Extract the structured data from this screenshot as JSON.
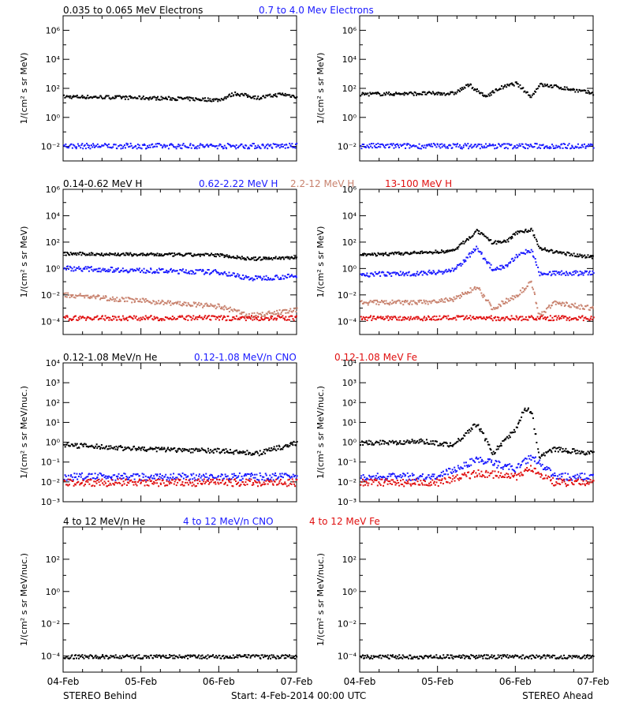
{
  "colors": {
    "black": "#000000",
    "blue": "#1a1aff",
    "tan": "#c8826e",
    "red": "#e01010"
  },
  "x_axis": {
    "tick_labels": [
      "04-Feb",
      "05-Feb",
      "06-Feb",
      "07-Feb"
    ]
  },
  "footer": {
    "left": "STEREO Behind",
    "center": "Start:  4-Feb-2014 00:00 UTC",
    "right": "STEREO Ahead"
  },
  "rows": [
    {
      "legend": [
        {
          "text": "0.035 to 0.065 MeV Electrons",
          "color": "black"
        },
        {
          "text": "0.7 to 4.0 Mev Electrons",
          "color": "blue"
        }
      ],
      "ylabel": "1/(cm² s sr MeV)",
      "ylim_exp": [
        -3,
        7
      ],
      "yticks": [
        {
          "exp": 6,
          "label": "10⁶"
        },
        {
          "exp": 4,
          "label": "10⁴"
        },
        {
          "exp": 2,
          "label": "10²"
        },
        {
          "exp": 0,
          "label": "10⁰"
        },
        {
          "exp": -2,
          "label": "10⁻²"
        }
      ]
    },
    {
      "legend": [
        {
          "text": "0.14-0.62 MeV H",
          "color": "black"
        },
        {
          "text": "0.62-2.22 MeV H",
          "color": "blue"
        },
        {
          "text": "2.2-12 MeV H",
          "color": "tan"
        },
        {
          "text": "13-100 MeV H",
          "color": "red"
        }
      ],
      "ylabel": "1/(cm² s sr MeV)",
      "ylim_exp": [
        -5,
        6
      ],
      "yticks": [
        {
          "exp": 6,
          "label": "10⁶"
        },
        {
          "exp": 4,
          "label": "10⁴"
        },
        {
          "exp": 2,
          "label": "10²"
        },
        {
          "exp": 0,
          "label": "10⁰"
        },
        {
          "exp": -2,
          "label": "10⁻²"
        },
        {
          "exp": -4,
          "label": "10⁻⁴"
        }
      ]
    },
    {
      "legend": [
        {
          "text": "0.12-1.08 MeV/n He",
          "color": "black"
        },
        {
          "text": "0.12-1.08 MeV/n CNO",
          "color": "blue"
        },
        {
          "text": "0.12-1.08 MeV Fe",
          "color": "red"
        }
      ],
      "ylabel": "1/(cm² s sr MeV/nuc.)",
      "ylim_exp": [
        -3,
        4
      ],
      "yticks": [
        {
          "exp": 4,
          "label": "10⁴"
        },
        {
          "exp": 3,
          "label": "10³"
        },
        {
          "exp": 2,
          "label": "10²"
        },
        {
          "exp": 1,
          "label": "10¹"
        },
        {
          "exp": 0,
          "label": "10⁰"
        },
        {
          "exp": -1,
          "label": "10⁻¹"
        },
        {
          "exp": -2,
          "label": "10⁻²"
        },
        {
          "exp": -3,
          "label": "10⁻³"
        }
      ]
    },
    {
      "legend": [
        {
          "text": "4 to 12 MeV/n He",
          "color": "black"
        },
        {
          "text": "4 to 12 MeV/n CNO",
          "color": "blue"
        },
        {
          "text": "4 to 12 MeV Fe",
          "color": "red"
        }
      ],
      "ylabel": "1/(cm² s sr MeV/nuc.)",
      "ylim_exp": [
        -5,
        4
      ],
      "yticks": [
        {
          "exp": 2,
          "label": "10²"
        },
        {
          "exp": 0,
          "label": "10⁰"
        },
        {
          "exp": -2,
          "label": "10⁻²"
        },
        {
          "exp": -4,
          "label": "10⁻⁴"
        }
      ]
    }
  ],
  "chart_data": [
    {
      "type": "scatter",
      "panel": "Behind row 1",
      "x_unit": "days since 04-Feb-2014",
      "y_scale": "log",
      "series": [
        {
          "name": "0.035 to 0.065 MeV Electrons",
          "color": "black",
          "x": [
            0,
            0.5,
            1,
            1.5,
            2,
            2.2,
            2.5,
            2.8,
            3
          ],
          "y": [
            30,
            28,
            25,
            22,
            18,
            50,
            25,
            45,
            30
          ]
        },
        {
          "name": "0.7 to 4.0 Mev Electrons",
          "color": "blue",
          "x": [
            0,
            1,
            2,
            3
          ],
          "y": [
            0.012,
            0.012,
            0.012,
            0.012
          ]
        }
      ]
    },
    {
      "type": "scatter",
      "panel": "Ahead row 1",
      "x_unit": "days since 04-Feb-2014",
      "y_scale": "log",
      "series": [
        {
          "name": "0.035 to 0.065 MeV Electrons",
          "color": "black",
          "x": [
            0,
            0.8,
            1.2,
            1.4,
            1.6,
            1.8,
            2.0,
            2.2,
            2.3,
            2.5,
            3
          ],
          "y": [
            45,
            50,
            50,
            200,
            30,
            120,
            250,
            30,
            200,
            150,
            50
          ]
        },
        {
          "name": "0.7 to 4.0 Mev Electrons",
          "color": "blue",
          "x": [
            0,
            1,
            2,
            3
          ],
          "y": [
            0.012,
            0.012,
            0.012,
            0.012
          ]
        }
      ]
    },
    {
      "type": "scatter",
      "panel": "Behind row 2",
      "x_unit": "days since 04-Feb-2014",
      "y_scale": "log",
      "series": [
        {
          "name": "0.14-0.62 MeV H",
          "color": "black",
          "x": [
            0,
            1,
            2,
            2.4,
            3
          ],
          "y": [
            15,
            13,
            12,
            6,
            8
          ]
        },
        {
          "name": "0.62-2.22 MeV H",
          "color": "blue",
          "x": [
            0,
            1,
            2,
            2.4,
            3
          ],
          "y": [
            1.2,
            0.8,
            0.6,
            0.2,
            0.3
          ]
        },
        {
          "name": "2.2-12 MeV H",
          "color": "tan",
          "x": [
            0,
            1,
            2,
            2.4,
            3
          ],
          "y": [
            0.012,
            0.004,
            0.0015,
            0.0003,
            0.0008
          ]
        },
        {
          "name": "13-100 MeV H",
          "color": "red",
          "x": [
            0,
            1,
            2,
            3
          ],
          "y": [
            0.0002,
            0.0002,
            0.0002,
            0.0002
          ]
        }
      ]
    },
    {
      "type": "scatter",
      "panel": "Ahead row 2",
      "x_unit": "days since 04-Feb-2014",
      "y_scale": "log",
      "series": [
        {
          "name": "0.14-0.62 MeV H",
          "color": "black",
          "x": [
            0,
            0.8,
            1.2,
            1.5,
            1.7,
            1.9,
            2.0,
            2.2,
            2.3,
            2.5,
            3
          ],
          "y": [
            12,
            18,
            25,
            800,
            100,
            150,
            600,
            1000,
            40,
            20,
            8
          ]
        },
        {
          "name": "0.62-2.22 MeV H",
          "color": "blue",
          "x": [
            0,
            0.8,
            1.2,
            1.5,
            1.7,
            1.9,
            2.0,
            2.2,
            2.3,
            2.5,
            3
          ],
          "y": [
            0.4,
            0.5,
            0.8,
            40,
            1,
            2,
            10,
            30,
            0.5,
            0.5,
            0.5
          ]
        },
        {
          "name": "2.2-12 MeV H",
          "color": "tan",
          "x": [
            0,
            0.8,
            1.2,
            1.5,
            1.7,
            1.9,
            2.0,
            2.2,
            2.3,
            2.5,
            3
          ],
          "y": [
            0.003,
            0.003,
            0.005,
            0.05,
            0.001,
            0.005,
            0.01,
            0.1,
            0.0003,
            0.003,
            0.001
          ]
        },
        {
          "name": "13-100 MeV H",
          "color": "red",
          "x": [
            0,
            1,
            2,
            3
          ],
          "y": [
            0.0002,
            0.0002,
            0.0002,
            0.0002
          ]
        }
      ]
    },
    {
      "type": "scatter",
      "panel": "Behind row 3",
      "x_unit": "days since 04-Feb-2014",
      "y_scale": "log",
      "series": [
        {
          "name": "0.12-1.08 MeV/n He",
          "color": "black",
          "x": [
            0,
            1,
            2,
            2.5,
            3
          ],
          "y": [
            0.8,
            0.5,
            0.4,
            0.3,
            1.0
          ]
        },
        {
          "name": "0.12-1.08 MeV/n CNO",
          "color": "blue",
          "x": [
            0,
            1,
            2,
            3
          ],
          "y": [
            0.02,
            0.02,
            0.02,
            0.02
          ]
        },
        {
          "name": "0.12-1.08 MeV Fe",
          "color": "red",
          "x": [
            0,
            1,
            2,
            3
          ],
          "y": [
            0.01,
            0.01,
            0.01,
            0.01
          ]
        }
      ]
    },
    {
      "type": "scatter",
      "panel": "Ahead row 3",
      "x_unit": "days since 04-Feb-2014",
      "y_scale": "log",
      "series": [
        {
          "name": "0.12-1.08 MeV/n He",
          "color": "black",
          "x": [
            0,
            0.8,
            1.2,
            1.5,
            1.7,
            1.9,
            2.0,
            2.1,
            2.2,
            2.3,
            2.5,
            3
          ],
          "y": [
            1,
            1.2,
            0.8,
            10,
            0.3,
            2,
            5,
            50,
            40,
            0.2,
            0.5,
            0.3
          ]
        },
        {
          "name": "0.12-1.08 MeV/n CNO",
          "color": "blue",
          "x": [
            0,
            1,
            1.5,
            2,
            2.2,
            2.5,
            3
          ],
          "y": [
            0.02,
            0.02,
            0.15,
            0.05,
            0.2,
            0.02,
            0.02
          ]
        },
        {
          "name": "0.12-1.08 MeV Fe",
          "color": "red",
          "x": [
            0,
            1,
            1.5,
            2,
            2.2,
            2.5,
            3
          ],
          "y": [
            0.01,
            0.01,
            0.03,
            0.02,
            0.05,
            0.01,
            0.01
          ]
        }
      ]
    },
    {
      "type": "scatter",
      "panel": "Behind row 4",
      "x_unit": "days since 04-Feb-2014",
      "y_scale": "log",
      "series": [
        {
          "name": "4 to 12 MeV/n He",
          "color": "black",
          "x": [
            0,
            1,
            2,
            3
          ],
          "y": [
            0.0001,
            0.0001,
            0.0001,
            0.0001
          ]
        }
      ]
    },
    {
      "type": "scatter",
      "panel": "Ahead row 4",
      "x_unit": "days since 04-Feb-2014",
      "y_scale": "log",
      "series": [
        {
          "name": "4 to 12 MeV/n He",
          "color": "black",
          "x": [
            0,
            1,
            2,
            3
          ],
          "y": [
            0.0001,
            0.0001,
            0.0001,
            0.0001
          ]
        }
      ]
    }
  ]
}
